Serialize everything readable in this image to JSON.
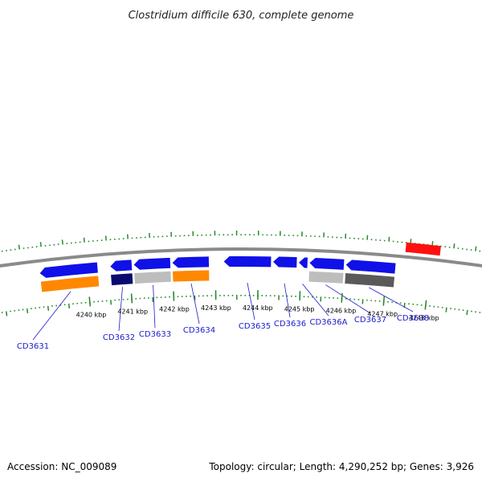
{
  "header": {
    "title": "Clostridium difficile 630, complete genome"
  },
  "footer": {
    "accession": "Accession: NC_009089",
    "summary": "Topology: circular; Length: 4,290,252 bp; Genes: 3,926"
  },
  "colors": {
    "backbone": "#8a8a8a",
    "tick": "#2a8a2a",
    "gene_blue": "#1010e8",
    "gene_navy": "#0a0a70",
    "gene_orange": "#ff8800",
    "gene_lightgray": "#bdbdbd",
    "gene_darkgray": "#5a5a5a",
    "gene_red": "#ff1010",
    "label": "#1a1acc"
  },
  "scale": {
    "unit": "kbp",
    "ticks": [
      4240,
      4241,
      4242,
      4243,
      4244,
      4245,
      4246,
      4247,
      4248
    ],
    "tick_labels": [
      "4240 kbp",
      "4241 kbp",
      "4242 kbp",
      "4243 kbp",
      "4244 kbp",
      "4245 kbp",
      "4246 kbp",
      "4247 kbp",
      "4248 kbp"
    ]
  },
  "genes": [
    {
      "label": "CD3631",
      "start": 4238.9,
      "end": 4240.25,
      "strand": "-",
      "track_color": "gene_orange"
    },
    {
      "label": "CD3632",
      "start": 4240.55,
      "end": 4241.05,
      "strand": "-",
      "track_color": "gene_navy"
    },
    {
      "label": "CD3633",
      "start": 4241.1,
      "end": 4241.95,
      "strand": "-",
      "track_color": "gene_lightgray"
    },
    {
      "label": "CD3634",
      "start": 4242.0,
      "end": 4242.85,
      "strand": "-",
      "track_color": "gene_orange"
    },
    {
      "label": "CD3635",
      "start": 4243.2,
      "end": 4244.3,
      "strand": "-",
      "track_color": ""
    },
    {
      "label": "CD3636",
      "start": 4244.35,
      "end": 4244.9,
      "strand": "-",
      "track_color": ""
    },
    {
      "label": "CD3636A",
      "start": 4244.95,
      "end": 4245.15,
      "strand": "-",
      "track_color": ""
    },
    {
      "label": "CD3637",
      "start": 4245.2,
      "end": 4246.0,
      "strand": "-",
      "track_color": "gene_lightgray"
    },
    {
      "label": "CD3638",
      "start": 4246.05,
      "end": 4247.2,
      "strand": "-",
      "track_color": "gene_darkgray"
    }
  ],
  "outer_genes": [
    {
      "start": 4247.4,
      "end": 4248.2,
      "strand": "+",
      "color": "gene_red"
    }
  ]
}
